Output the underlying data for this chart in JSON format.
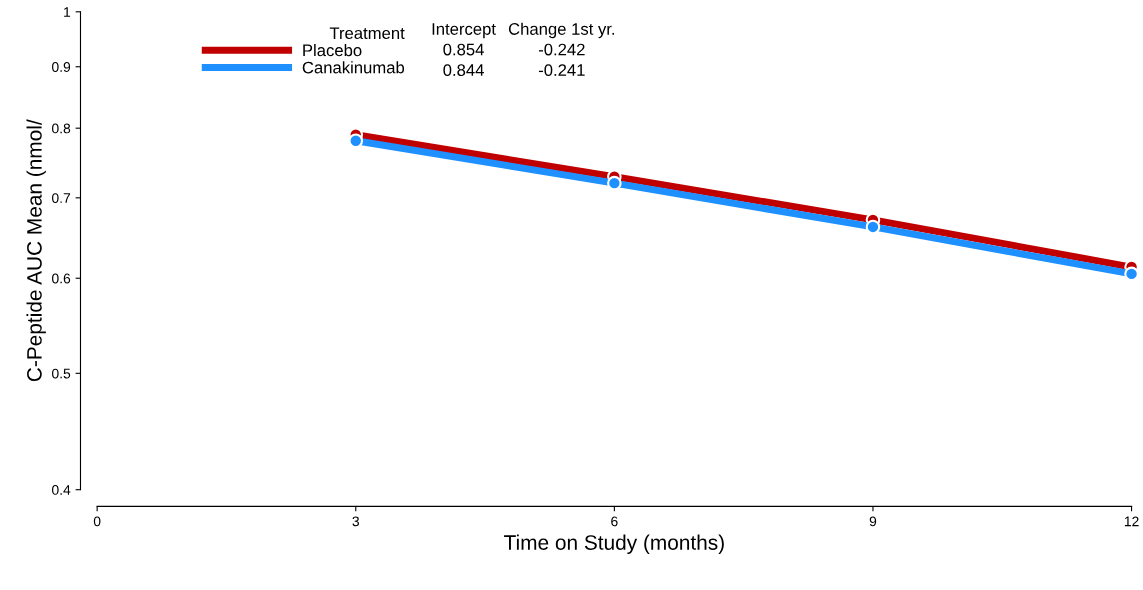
{
  "chart_data": {
    "type": "line",
    "xlabel": "Time on Study (months)",
    "ylabel": "C-Peptide AUC Mean (nmol/",
    "x": [
      3,
      6,
      9,
      12
    ],
    "series": [
      {
        "name": "Placebo",
        "color": "#c00000",
        "values": [
          0.79,
          0.729,
          0.671,
          0.613
        ]
      },
      {
        "name": "Canakinumab",
        "color": "#1e90ff",
        "values": [
          0.781,
          0.72,
          0.662,
          0.605
        ]
      }
    ],
    "xlim": [
      0,
      12
    ],
    "xticks": [
      0,
      3,
      6,
      9,
      12
    ],
    "ylim": [
      0.4,
      1
    ],
    "yticks": [
      0.4,
      0.5,
      0.6,
      0.7,
      0.8,
      0.9,
      1
    ],
    "log": true,
    "marker": "circle",
    "line_style": "solid",
    "grid": false,
    "legend": "top left",
    "legend_title": "Treatment",
    "annotations": [
      "Intercept",
      "Change 1st yr.",
      "0.854",
      "-0.242",
      "0.844",
      "-0.241"
    ]
  }
}
